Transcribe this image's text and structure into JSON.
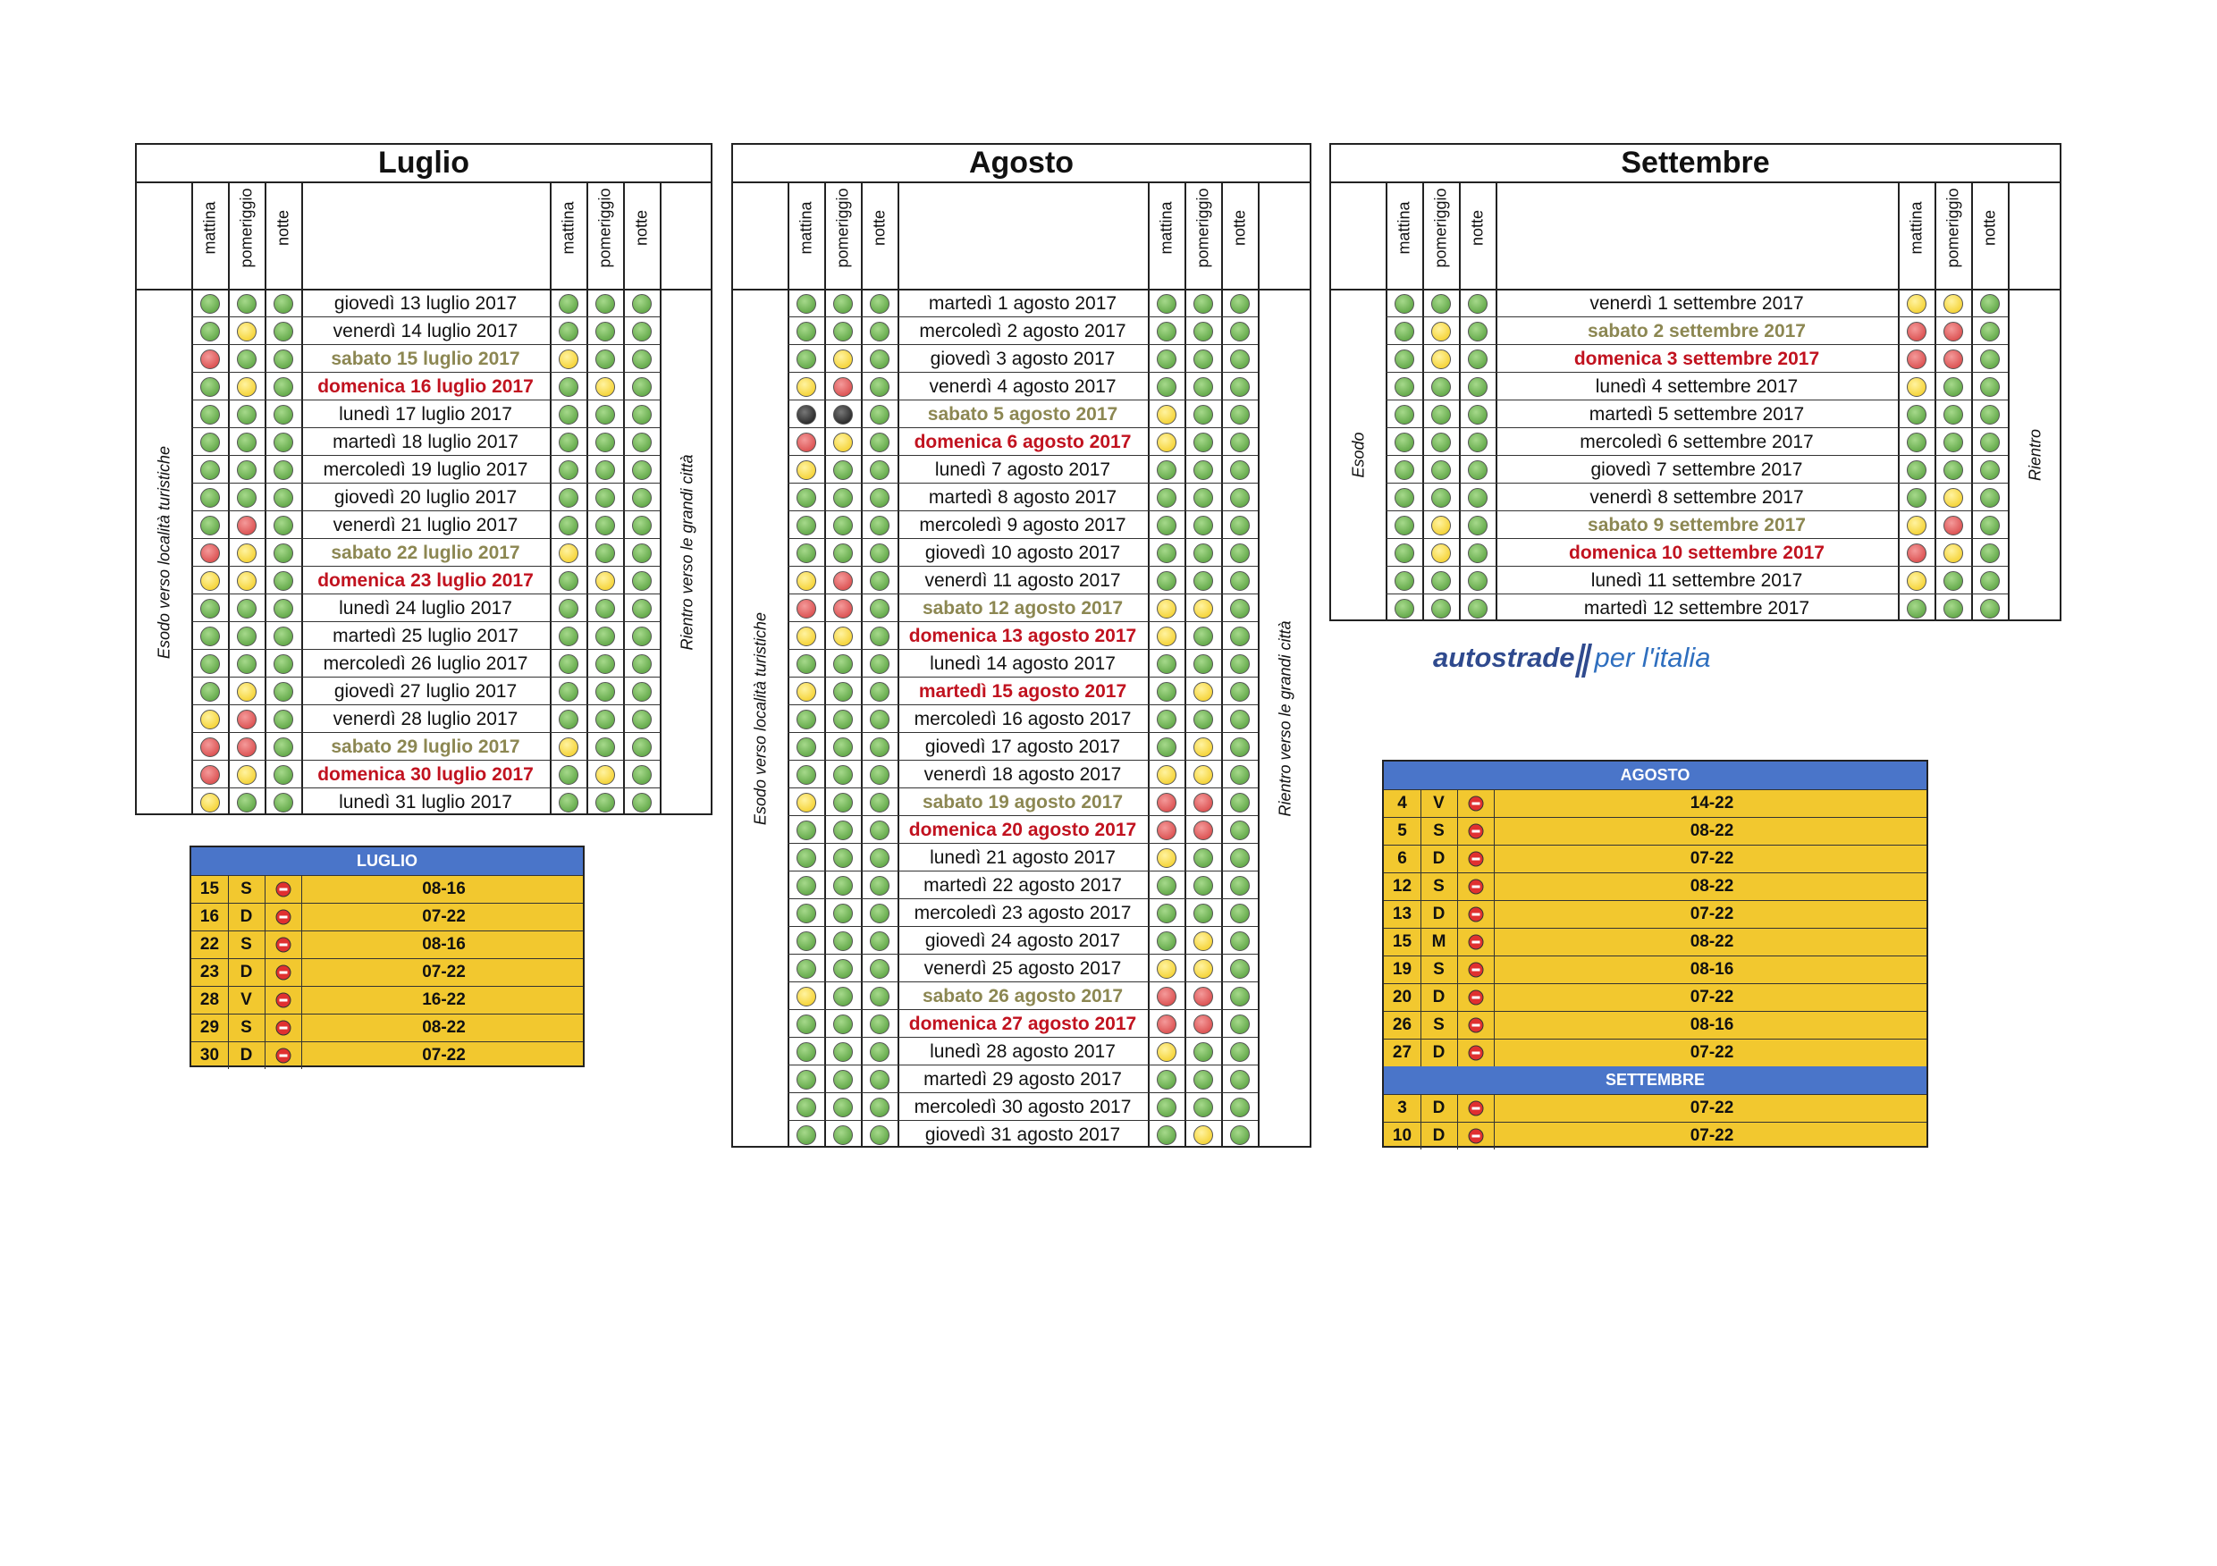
{
  "header_labels": {
    "mattina": "mattina",
    "pomeriggio": "pomeriggio",
    "notte": "notte"
  },
  "months": [
    {
      "id": "luglio",
      "title": "Luglio",
      "side_left": "Esodo verso località turistiche",
      "side_right": "Rientro verso le grandi città",
      "rows": [
        {
          "date": "giovedì 13 luglio 2017",
          "type": "",
          "out": "ggg",
          "in": "ggg"
        },
        {
          "date": "venerdì 14 luglio 2017",
          "type": "",
          "out": "gyg",
          "in": "ggg"
        },
        {
          "date": "sabato 15 luglio 2017",
          "type": "sat",
          "out": "rgg",
          "in": "ygg"
        },
        {
          "date": "domenica 16 luglio 2017",
          "type": "red",
          "out": "gyg",
          "in": "gyg"
        },
        {
          "date": "lunedì 17 luglio 2017",
          "type": "",
          "out": "ggg",
          "in": "ggg"
        },
        {
          "date": "martedì 18 luglio 2017",
          "type": "",
          "out": "ggg",
          "in": "ggg"
        },
        {
          "date": "mercoledì 19 luglio 2017",
          "type": "",
          "out": "ggg",
          "in": "ggg"
        },
        {
          "date": "giovedì 20 luglio 2017",
          "type": "",
          "out": "ggg",
          "in": "ggg"
        },
        {
          "date": "venerdì 21 luglio 2017",
          "type": "",
          "out": "grg",
          "in": "ggg"
        },
        {
          "date": "sabato 22 luglio 2017",
          "type": "sat",
          "out": "ryg",
          "in": "ygg"
        },
        {
          "date": "domenica 23 luglio 2017",
          "type": "red",
          "out": "yyg",
          "in": "gyg"
        },
        {
          "date": "lunedì 24 luglio 2017",
          "type": "",
          "out": "ggg",
          "in": "ggg"
        },
        {
          "date": "martedì 25 luglio 2017",
          "type": "",
          "out": "ggg",
          "in": "ggg"
        },
        {
          "date": "mercoledì 26 luglio 2017",
          "type": "",
          "out": "ggg",
          "in": "ggg"
        },
        {
          "date": "giovedì 27 luglio 2017",
          "type": "",
          "out": "gyg",
          "in": "ggg"
        },
        {
          "date": "venerdì 28 luglio 2017",
          "type": "",
          "out": "yrg",
          "in": "ggg"
        },
        {
          "date": "sabato 29 luglio 2017",
          "type": "sat",
          "out": "rrg",
          "in": "ygg"
        },
        {
          "date": "domenica 30 luglio 2017",
          "type": "red",
          "out": "ryg",
          "in": "gyg"
        },
        {
          "date": "lunedì 31 luglio 2017",
          "type": "",
          "out": "ygg",
          "in": "ggg"
        }
      ]
    },
    {
      "id": "agosto",
      "title": "Agosto",
      "side_left": "Esodo verso località turistiche",
      "side_right": "Rientro verso le grandi città",
      "rows": [
        {
          "date": "martedì 1 agosto 2017",
          "type": "",
          "out": "ggg",
          "in": "ggg"
        },
        {
          "date": "mercoledì 2 agosto 2017",
          "type": "",
          "out": "ggg",
          "in": "ggg"
        },
        {
          "date": "giovedì 3 agosto 2017",
          "type": "",
          "out": "gyg",
          "in": "ggg"
        },
        {
          "date": "venerdì 4 agosto 2017",
          "type": "",
          "out": "yrg",
          "in": "ggg"
        },
        {
          "date": "sabato 5 agosto 2017",
          "type": "sat",
          "out": "kkg",
          "in": "ygg"
        },
        {
          "date": "domenica 6 agosto 2017",
          "type": "red",
          "out": "ryg",
          "in": "ygg"
        },
        {
          "date": "lunedì 7 agosto 2017",
          "type": "",
          "out": "ygg",
          "in": "ggg"
        },
        {
          "date": "martedì 8 agosto 2017",
          "type": "",
          "out": "ggg",
          "in": "ggg"
        },
        {
          "date": "mercoledì 9 agosto 2017",
          "type": "",
          "out": "ggg",
          "in": "ggg"
        },
        {
          "date": "giovedì 10 agosto 2017",
          "type": "",
          "out": "ggg",
          "in": "ggg"
        },
        {
          "date": "venerdì 11 agosto 2017",
          "type": "",
          "out": "yrg",
          "in": "ggg"
        },
        {
          "date": "sabato 12 agosto 2017",
          "type": "sat",
          "out": "rrg",
          "in": "yyg"
        },
        {
          "date": "domenica 13 agosto 2017",
          "type": "red",
          "out": "yyg",
          "in": "ygg"
        },
        {
          "date": "lunedì 14 agosto 2017",
          "type": "",
          "out": "ggg",
          "in": "ggg"
        },
        {
          "date": "martedì 15 agosto 2017",
          "type": "red",
          "out": "ygg",
          "in": "gyg"
        },
        {
          "date": "mercoledì 16 agosto 2017",
          "type": "",
          "out": "ggg",
          "in": "ggg"
        },
        {
          "date": "giovedì 17 agosto 2017",
          "type": "",
          "out": "ggg",
          "in": "gyg"
        },
        {
          "date": "venerdì 18 agosto 2017",
          "type": "",
          "out": "ggg",
          "in": "yyg"
        },
        {
          "date": "sabato 19 agosto 2017",
          "type": "sat",
          "out": "ygg",
          "in": "rrg"
        },
        {
          "date": "domenica 20 agosto 2017",
          "type": "red",
          "out": "ggg",
          "in": "rrg"
        },
        {
          "date": "lunedì 21 agosto 2017",
          "type": "",
          "out": "ggg",
          "in": "ygg"
        },
        {
          "date": "martedì 22 agosto 2017",
          "type": "",
          "out": "ggg",
          "in": "ggg"
        },
        {
          "date": "mercoledì 23 agosto 2017",
          "type": "",
          "out": "ggg",
          "in": "ggg"
        },
        {
          "date": "giovedì 24 agosto 2017",
          "type": "",
          "out": "ggg",
          "in": "gyg"
        },
        {
          "date": "venerdì 25 agosto 2017",
          "type": "",
          "out": "ggg",
          "in": "yyg"
        },
        {
          "date": "sabato 26 agosto 2017",
          "type": "sat",
          "out": "ygg",
          "in": "rrg"
        },
        {
          "date": "domenica 27 agosto 2017",
          "type": "red",
          "out": "ggg",
          "in": "rrg"
        },
        {
          "date": "lunedì 28 agosto 2017",
          "type": "",
          "out": "ggg",
          "in": "ygg"
        },
        {
          "date": "martedì 29 agosto 2017",
          "type": "",
          "out": "ggg",
          "in": "ggg"
        },
        {
          "date": "mercoledì 30 agosto 2017",
          "type": "",
          "out": "ggg",
          "in": "ggg"
        },
        {
          "date": "giovedì 31 agosto 2017",
          "type": "",
          "out": "ggg",
          "in": "gyg"
        }
      ]
    },
    {
      "id": "settembre",
      "title": "Settembre",
      "side_left": "Esodo",
      "side_right": "Rientro",
      "rows": [
        {
          "date": "venerdì 1 settembre 2017",
          "type": "",
          "out": "ggg",
          "in": "yyg"
        },
        {
          "date": "sabato 2 settembre 2017",
          "type": "sat",
          "out": "gyg",
          "in": "rrg"
        },
        {
          "date": "domenica 3 settembre 2017",
          "type": "red",
          "out": "gyg",
          "in": "rrg"
        },
        {
          "date": "lunedì 4 settembre 2017",
          "type": "",
          "out": "ggg",
          "in": "ygg"
        },
        {
          "date": "martedì 5 settembre 2017",
          "type": "",
          "out": "ggg",
          "in": "ggg"
        },
        {
          "date": "mercoledì 6 settembre 2017",
          "type": "",
          "out": "ggg",
          "in": "ggg"
        },
        {
          "date": "giovedì 7 settembre 2017",
          "type": "",
          "out": "ggg",
          "in": "ggg"
        },
        {
          "date": "venerdì 8 settembre 2017",
          "type": "",
          "out": "ggg",
          "in": "gyg"
        },
        {
          "date": "sabato 9 settembre 2017",
          "type": "sat",
          "out": "gyg",
          "in": "yrg"
        },
        {
          "date": "domenica 10 settembre 2017",
          "type": "red",
          "out": "gyg",
          "in": "ryg"
        },
        {
          "date": "lunedì 11 settembre 2017",
          "type": "",
          "out": "ggg",
          "in": "ygg"
        },
        {
          "date": "martedì 12 settembre 2017",
          "type": "",
          "out": "ggg",
          "in": "ggg"
        }
      ]
    }
  ],
  "logo": {
    "brand": "autostrade",
    "suffix": "per l'italia"
  },
  "bans": [
    {
      "id": "ban-luglio",
      "sections": [
        {
          "title": "LUGLIO",
          "rows": [
            {
              "day": "15",
              "wd": "S",
              "hours": "08-16"
            },
            {
              "day": "16",
              "wd": "D",
              "hours": "07-22"
            },
            {
              "day": "22",
              "wd": "S",
              "hours": "08-16"
            },
            {
              "day": "23",
              "wd": "D",
              "hours": "07-22"
            },
            {
              "day": "28",
              "wd": "V",
              "hours": "16-22"
            },
            {
              "day": "29",
              "wd": "S",
              "hours": "08-22"
            },
            {
              "day": "30",
              "wd": "D",
              "hours": "07-22"
            }
          ]
        }
      ]
    },
    {
      "id": "ban-agosto-settembre",
      "sections": [
        {
          "title": "AGOSTO",
          "rows": [
            {
              "day": "4",
              "wd": "V",
              "hours": "14-22"
            },
            {
              "day": "5",
              "wd": "S",
              "hours": "08-22"
            },
            {
              "day": "6",
              "wd": "D",
              "hours": "07-22"
            },
            {
              "day": "12",
              "wd": "S",
              "hours": "08-22"
            },
            {
              "day": "13",
              "wd": "D",
              "hours": "07-22"
            },
            {
              "day": "15",
              "wd": "M",
              "hours": "08-22"
            },
            {
              "day": "19",
              "wd": "S",
              "hours": "08-16"
            },
            {
              "day": "20",
              "wd": "D",
              "hours": "07-22"
            },
            {
              "day": "26",
              "wd": "S",
              "hours": "08-16"
            },
            {
              "day": "27",
              "wd": "D",
              "hours": "07-22"
            }
          ]
        },
        {
          "title": "SETTEMBRE",
          "rows": [
            {
              "day": "3",
              "wd": "D",
              "hours": "07-22"
            },
            {
              "day": "10",
              "wd": "D",
              "hours": "07-22"
            }
          ]
        }
      ]
    }
  ]
}
